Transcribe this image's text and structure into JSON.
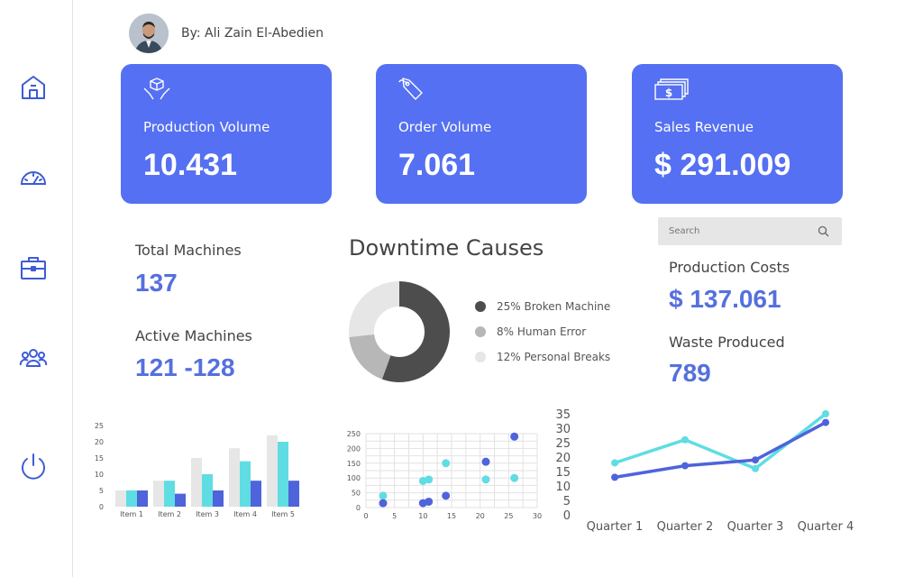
{
  "sidebar": {
    "items": [
      {
        "icon": "home-icon"
      },
      {
        "icon": "dashboard-gauge-icon"
      },
      {
        "icon": "briefcase-icon"
      },
      {
        "icon": "team-icon"
      },
      {
        "icon": "power-icon"
      }
    ]
  },
  "author": {
    "name": "By: Ali Zain El-Abedien"
  },
  "kpis": [
    {
      "label": "Production Volume",
      "value": "10.431",
      "icon": "box-hands-icon"
    },
    {
      "label": "Order Volume",
      "value": "7.061",
      "icon": "tag-icon"
    },
    {
      "label": "Sales Revenue",
      "value": "$ 291.009",
      "icon": "cash-stack-icon"
    }
  ],
  "machines": {
    "total_label": "Total Machines",
    "total_value": "137",
    "active_label": "Active Machines",
    "active_value": "121 -128"
  },
  "search": {
    "placeholder": "Search"
  },
  "costs": {
    "production_label": "Production Costs",
    "production_value": "$ 137.061",
    "waste_label": "Waste Produced",
    "waste_value": "789"
  },
  "colors": {
    "accent": "#5570f2",
    "value_text": "#5570dd",
    "cyan": "#5fdde3",
    "indigo": "#4f63db",
    "light_gray": "#e6e6e6",
    "mid_gray": "#b7b7b7",
    "dark_gray": "#4d4d4d"
  },
  "chart_data": [
    {
      "type": "pie",
      "title": "Downtime Causes",
      "donut": true,
      "slices": [
        {
          "label": "25% Broken Machine",
          "value": 25,
          "color": "#4d4d4d"
        },
        {
          "label": "8% Human Error",
          "value": 8,
          "color": "#b7b7b7"
        },
        {
          "label": "12% Personal Breaks",
          "value": 12,
          "color": "#e6e6e6"
        }
      ]
    },
    {
      "type": "bar",
      "categories": [
        "Item 1",
        "Item 2",
        "Item 3",
        "Item 4",
        "Item 5"
      ],
      "series": [
        {
          "values": [
            5,
            8,
            15,
            18,
            22
          ],
          "color": "#e6e6e6"
        },
        {
          "values": [
            5,
            8,
            10,
            14,
            20
          ],
          "color": "#5fdde3"
        },
        {
          "values": [
            5,
            4,
            5,
            8,
            8
          ],
          "color": "#4f63db"
        }
      ],
      "ylim": [
        0,
        25
      ],
      "yticks": [
        0,
        5,
        10,
        15,
        20,
        25
      ]
    },
    {
      "type": "scatter",
      "xlim": [
        0,
        30
      ],
      "ylim": [
        0,
        250
      ],
      "xticks": [
        0,
        5,
        10,
        15,
        20,
        25,
        30
      ],
      "yticks": [
        0,
        50,
        100,
        150,
        200,
        250
      ],
      "grid": true,
      "series": [
        {
          "color": "#5fdde3",
          "points": [
            [
              3,
              40
            ],
            [
              10,
              90
            ],
            [
              11,
              95
            ],
            [
              14,
              150
            ],
            [
              21,
              95
            ],
            [
              26,
              100
            ]
          ]
        },
        {
          "color": "#4f63db",
          "points": [
            [
              3,
              15
            ],
            [
              10,
              15
            ],
            [
              11,
              20
            ],
            [
              14,
              40
            ],
            [
              21,
              155
            ],
            [
              26,
              240
            ]
          ]
        }
      ]
    },
    {
      "type": "line",
      "categories": [
        "Quarter 1",
        "Quarter 2",
        "Quarter 3",
        "Quarter 4"
      ],
      "ylim": [
        0,
        35
      ],
      "yticks": [
        0,
        5,
        10,
        15,
        20,
        25,
        30,
        35
      ],
      "series": [
        {
          "values": [
            18,
            26,
            16,
            35
          ],
          "color": "#5fdde3"
        },
        {
          "values": [
            13,
            17,
            19,
            32
          ],
          "color": "#4f63db"
        }
      ]
    }
  ]
}
